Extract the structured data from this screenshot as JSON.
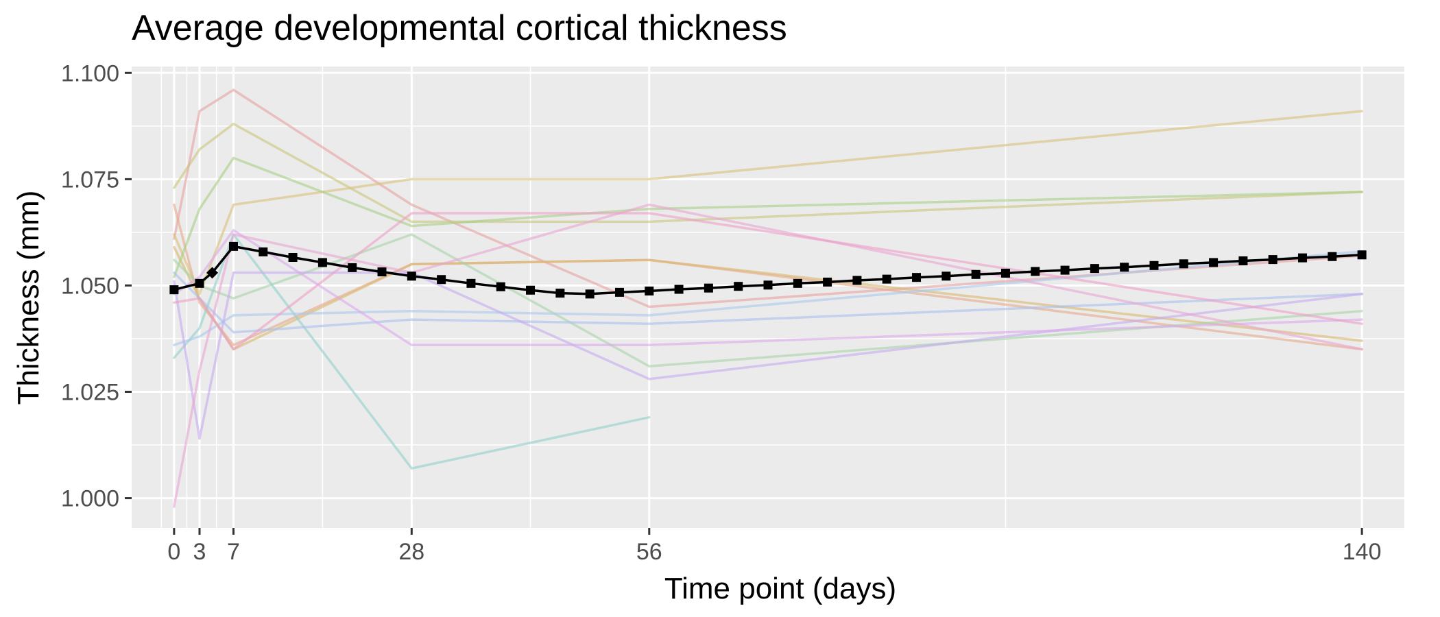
{
  "chart_data": {
    "type": "line",
    "title": "Average developmental cortical thickness",
    "xlabel": "Time point (days)",
    "ylabel": "Thickness (mm)",
    "xlim": [
      -5,
      145
    ],
    "ylim": [
      0.993,
      1.1015
    ],
    "x_ticks": [
      0,
      3,
      7,
      28,
      56,
      140
    ],
    "x_tick_labels": [
      "0",
      "3",
      "7",
      "28",
      "56",
      "140"
    ],
    "y_ticks": [
      1.0,
      1.025,
      1.05,
      1.075,
      1.1
    ],
    "y_tick_labels": [
      "1.000",
      "1.025",
      "1.050",
      "1.075",
      "1.100"
    ],
    "grid": true,
    "legend": "none",
    "panel_background": "#ebebeb",
    "individual_series": [
      {
        "color": "#e8a0a0",
        "points": [
          [
            0,
            1.061
          ],
          [
            3,
            1.091
          ],
          [
            7,
            1.096
          ],
          [
            28,
            1.069
          ],
          [
            56,
            1.045
          ],
          [
            140,
            1.057
          ]
        ]
      },
      {
        "color": "#e8a98b",
        "points": [
          [
            0,
            1.069
          ],
          [
            3,
            1.046
          ],
          [
            7,
            1.036
          ],
          [
            28,
            1.055
          ],
          [
            56,
            1.056
          ],
          [
            140,
            1.035
          ]
        ]
      },
      {
        "color": "#d9c07a",
        "points": [
          [
            0,
            1.062
          ],
          [
            3,
            1.048
          ],
          [
            7,
            1.069
          ],
          [
            28,
            1.075
          ],
          [
            56,
            1.075
          ],
          [
            140,
            1.091
          ]
        ]
      },
      {
        "color": "#c9c67c",
        "points": [
          [
            0,
            1.073
          ],
          [
            3,
            1.082
          ],
          [
            7,
            1.088
          ],
          [
            28,
            1.065
          ],
          [
            56,
            1.065
          ],
          [
            140,
            1.072
          ]
        ]
      },
      {
        "color": "#d8b86c",
        "points": [
          [
            0,
            1.059
          ],
          [
            3,
            1.047
          ],
          [
            7,
            1.035
          ],
          [
            28,
            1.055
          ],
          [
            56,
            1.056
          ],
          [
            140,
            1.037
          ]
        ]
      },
      {
        "color": "#a6cf86",
        "points": [
          [
            0,
            1.052
          ],
          [
            3,
            1.068
          ],
          [
            7,
            1.08
          ],
          [
            28,
            1.064
          ],
          [
            56,
            1.068
          ],
          [
            140,
            1.072
          ]
        ]
      },
      {
        "color": "#a8d4a8",
        "points": [
          [
            0,
            1.056
          ],
          [
            3,
            1.05
          ],
          [
            7,
            1.047
          ],
          [
            28,
            1.062
          ],
          [
            56,
            1.031
          ],
          [
            140,
            1.044
          ]
        ]
      },
      {
        "color": "#8fd1cc",
        "points": [
          [
            0,
            1.033
          ],
          [
            3,
            1.04
          ],
          [
            7,
            1.062
          ],
          [
            28,
            1.007
          ],
          [
            56,
            1.019
          ]
        ]
      },
      {
        "color": "#a8c8ec",
        "points": [
          [
            0,
            1.036
          ],
          [
            3,
            1.038
          ],
          [
            7,
            1.043
          ],
          [
            28,
            1.044
          ],
          [
            56,
            1.043
          ],
          [
            140,
            1.058
          ]
        ]
      },
      {
        "color": "#a9c0ee",
        "points": [
          [
            0,
            1.053
          ],
          [
            3,
            1.047
          ],
          [
            7,
            1.039
          ],
          [
            28,
            1.042
          ],
          [
            56,
            1.041
          ],
          [
            140,
            1.048
          ]
        ]
      },
      {
        "color": "#c4aaf0",
        "points": [
          [
            0,
            1.051
          ],
          [
            3,
            1.014
          ],
          [
            7,
            1.053
          ],
          [
            28,
            1.053
          ],
          [
            56,
            1.028
          ],
          [
            140,
            1.048
          ]
        ]
      },
      {
        "color": "#dca8ec",
        "points": [
          [
            0,
            1.048
          ],
          [
            3,
            1.052
          ],
          [
            7,
            1.063
          ],
          [
            28,
            1.036
          ],
          [
            56,
            1.036
          ],
          [
            140,
            1.042
          ]
        ]
      },
      {
        "color": "#e9a5d2",
        "points": [
          [
            0,
            0.998
          ],
          [
            3,
            1.03
          ],
          [
            7,
            1.062
          ],
          [
            28,
            1.053
          ],
          [
            56,
            1.069
          ],
          [
            140,
            1.035
          ]
        ]
      },
      {
        "color": "#ed9ec6",
        "points": [
          [
            0,
            1.046
          ],
          [
            3,
            1.047
          ],
          [
            7,
            1.035
          ],
          [
            28,
            1.067
          ],
          [
            56,
            1.067
          ],
          [
            140,
            1.041
          ]
        ]
      }
    ],
    "average_series": {
      "color": "#000000",
      "x": [
        0,
        3,
        4.5,
        7,
        10.5,
        14,
        17.5,
        21,
        24.5,
        28,
        31.5,
        35,
        38.5,
        42,
        45.5,
        49,
        52.5,
        56,
        59.5,
        63,
        66.5,
        70,
        73.5,
        77,
        80.5,
        84,
        87.5,
        91,
        94.5,
        98,
        101.5,
        105,
        108.5,
        112,
        115.5,
        119,
        122.5,
        126,
        129.5,
        133,
        136.5,
        140
      ],
      "y": [
        1.049,
        1.0505,
        1.053,
        1.0592,
        1.0579,
        1.0566,
        1.0554,
        1.0542,
        1.0532,
        1.0522,
        1.0514,
        1.0505,
        1.0497,
        1.0489,
        1.0482,
        1.048,
        1.0484,
        1.0487,
        1.0491,
        1.0494,
        1.0498,
        1.0501,
        1.0505,
        1.0508,
        1.0512,
        1.0515,
        1.0519,
        1.0522,
        1.0526,
        1.0529,
        1.0533,
        1.0536,
        1.054,
        1.0543,
        1.0547,
        1.0551,
        1.0554,
        1.0558,
        1.0561,
        1.0565,
        1.0568,
        1.0572
      ],
      "markers": "square"
    }
  }
}
